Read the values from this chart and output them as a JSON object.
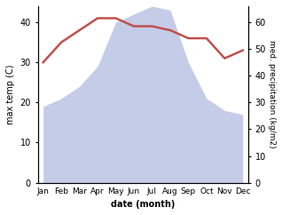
{
  "months": [
    "Jan",
    "Feb",
    "Mar",
    "Apr",
    "May",
    "Jun",
    "Jul",
    "Aug",
    "Sep",
    "Oct",
    "Nov",
    "Dec"
  ],
  "temperature": [
    30,
    35,
    38,
    41,
    41,
    39,
    39,
    38,
    36,
    36,
    31,
    33
  ],
  "rainfall_display": [
    19,
    21,
    24,
    29,
    40,
    42,
    44,
    43,
    30,
    21,
    18,
    17
  ],
  "temp_color": "#c0504d",
  "rain_fill_color": "#c5cce8",
  "ylim_left": [
    0,
    44
  ],
  "ylim_right": [
    0,
    66
  ],
  "yticks_left": [
    0,
    10,
    20,
    30,
    40
  ],
  "yticks_right": [
    0,
    10,
    20,
    30,
    40,
    50,
    60
  ],
  "xlabel": "date (month)",
  "ylabel_left": "max temp (C)",
  "ylabel_right": "med. precipitation (kg/m2)",
  "temp_linewidth": 1.8,
  "figsize": [
    3.18,
    2.42
  ],
  "dpi": 100
}
